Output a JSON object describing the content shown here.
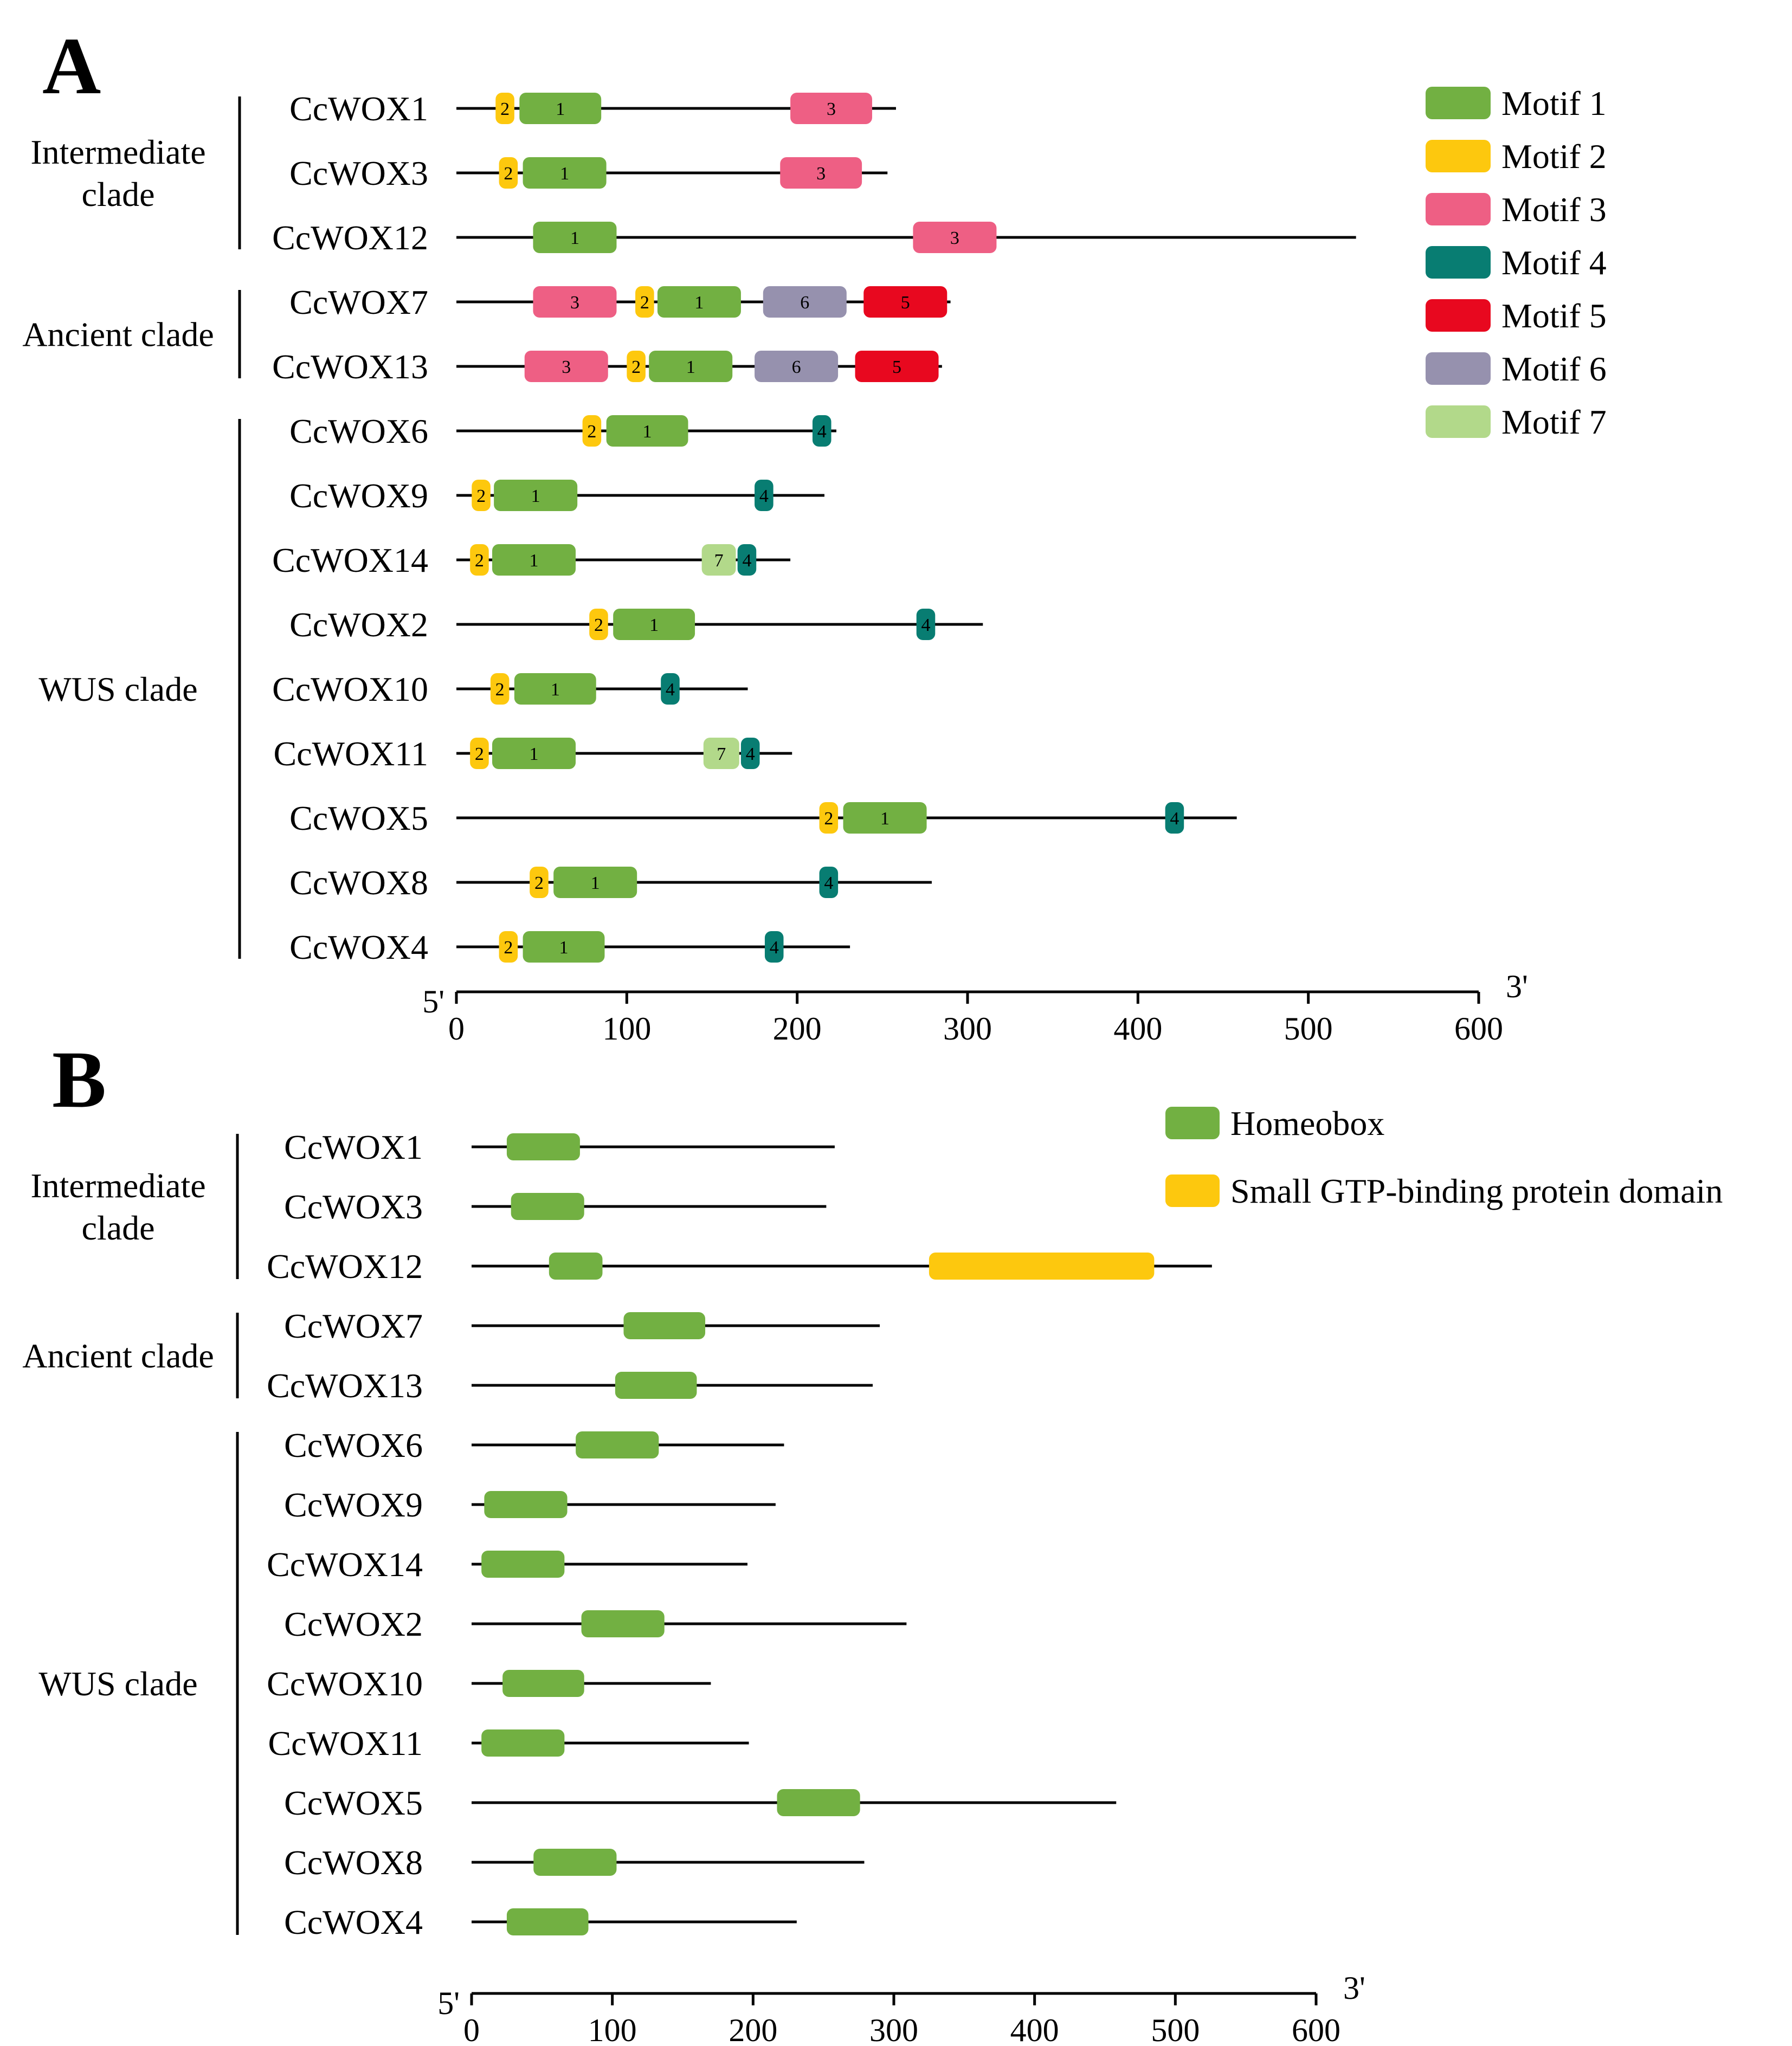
{
  "panel_a": {
    "label": "A",
    "axis": {
      "five_prime": "5'",
      "three_prime": "3'",
      "ticks": [
        0,
        100,
        200,
        300,
        400,
        500,
        600
      ],
      "max": 600
    },
    "clades": [
      {
        "name_lines": [
          "Intermediate",
          "clade"
        ],
        "genes": [
          "CcWOX1",
          "CcWOX3",
          "CcWOX12"
        ]
      },
      {
        "name_lines": [
          "Ancient clade"
        ],
        "genes": [
          "CcWOX7",
          "CcWOX13"
        ]
      },
      {
        "name_lines": [
          "WUS clade"
        ],
        "genes": [
          "CcWOX6",
          "CcWOX9",
          "CcWOX14",
          "CcWOX2",
          "CcWOX10",
          "CcWOX11",
          "CcWOX5",
          "CcWOX8",
          "CcWOX4"
        ]
      }
    ],
    "legend": [
      {
        "motif": "1",
        "label": "Motif 1",
        "color": "#72b042"
      },
      {
        "motif": "2",
        "label": "Motif 2",
        "color": "#fdc80e"
      },
      {
        "motif": "3",
        "label": "Motif 3",
        "color": "#ee5f84"
      },
      {
        "motif": "4",
        "label": "Motif 4",
        "color": "#087d72"
      },
      {
        "motif": "5",
        "label": "Motif 5",
        "color": "#e8081f"
      },
      {
        "motif": "6",
        "label": "Motif 6",
        "color": "#9691ae"
      },
      {
        "motif": "7",
        "label": "Motif 7",
        "color": "#b2d98a"
      }
    ],
    "rows": [
      {
        "gene": "CcWOX1",
        "length": 258,
        "motifs": [
          {
            "m": "2",
            "s": 23,
            "e": 34
          },
          {
            "m": "1",
            "s": 37,
            "e": 85
          },
          {
            "m": "3",
            "s": 196,
            "e": 244
          }
        ]
      },
      {
        "gene": "CcWOX3",
        "length": 253,
        "motifs": [
          {
            "m": "2",
            "s": 25,
            "e": 36
          },
          {
            "m": "1",
            "s": 39,
            "e": 88
          },
          {
            "m": "3",
            "s": 190,
            "e": 238
          }
        ]
      },
      {
        "gene": "CcWOX12",
        "length": 528,
        "motifs": [
          {
            "m": "1",
            "s": 45,
            "e": 94
          },
          {
            "m": "3",
            "s": 268,
            "e": 317
          }
        ]
      },
      {
        "gene": "CcWOX7",
        "length": 290,
        "motifs": [
          {
            "m": "3",
            "s": 45,
            "e": 94
          },
          {
            "m": "2",
            "s": 105,
            "e": 116
          },
          {
            "m": "1",
            "s": 118,
            "e": 167
          },
          {
            "m": "6",
            "s": 180,
            "e": 229
          },
          {
            "m": "5",
            "s": 239,
            "e": 288
          }
        ]
      },
      {
        "gene": "CcWOX13",
        "length": 285,
        "motifs": [
          {
            "m": "3",
            "s": 40,
            "e": 89
          },
          {
            "m": "2",
            "s": 100,
            "e": 111
          },
          {
            "m": "1",
            "s": 113,
            "e": 162
          },
          {
            "m": "6",
            "s": 175,
            "e": 224
          },
          {
            "m": "5",
            "s": 234,
            "e": 283
          }
        ]
      },
      {
        "gene": "CcWOX6",
        "length": 223,
        "motifs": [
          {
            "m": "2",
            "s": 74,
            "e": 85
          },
          {
            "m": "1",
            "s": 88,
            "e": 136
          },
          {
            "m": "4",
            "s": 209,
            "e": 220
          }
        ]
      },
      {
        "gene": "CcWOX9",
        "length": 216,
        "motifs": [
          {
            "m": "2",
            "s": 9,
            "e": 20
          },
          {
            "m": "1",
            "s": 22,
            "e": 71
          },
          {
            "m": "4",
            "s": 175,
            "e": 186
          }
        ]
      },
      {
        "gene": "CcWOX14",
        "length": 196,
        "motifs": [
          {
            "m": "2",
            "s": 8,
            "e": 19
          },
          {
            "m": "1",
            "s": 21,
            "e": 70
          },
          {
            "m": "7",
            "s": 144,
            "e": 164
          },
          {
            "m": "4",
            "s": 165,
            "e": 176
          }
        ]
      },
      {
        "gene": "CcWOX2",
        "length": 309,
        "motifs": [
          {
            "m": "2",
            "s": 78,
            "e": 89
          },
          {
            "m": "1",
            "s": 92,
            "e": 140
          },
          {
            "m": "4",
            "s": 270,
            "e": 281
          }
        ]
      },
      {
        "gene": "CcWOX10",
        "length": 171,
        "motifs": [
          {
            "m": "2",
            "s": 20,
            "e": 31
          },
          {
            "m": "1",
            "s": 34,
            "e": 82
          },
          {
            "m": "4",
            "s": 120,
            "e": 131
          }
        ]
      },
      {
        "gene": "CcWOX11",
        "length": 197,
        "motifs": [
          {
            "m": "2",
            "s": 8,
            "e": 19
          },
          {
            "m": "1",
            "s": 21,
            "e": 70
          },
          {
            "m": "7",
            "s": 145,
            "e": 166
          },
          {
            "m": "4",
            "s": 167,
            "e": 178
          }
        ]
      },
      {
        "gene": "CcWOX5",
        "length": 458,
        "motifs": [
          {
            "m": "2",
            "s": 213,
            "e": 224
          },
          {
            "m": "1",
            "s": 227,
            "e": 276
          },
          {
            "m": "4",
            "s": 416,
            "e": 427
          }
        ]
      },
      {
        "gene": "CcWOX8",
        "length": 279,
        "motifs": [
          {
            "m": "2",
            "s": 43,
            "e": 54
          },
          {
            "m": "1",
            "s": 57,
            "e": 106
          },
          {
            "m": "4",
            "s": 213,
            "e": 224
          }
        ]
      },
      {
        "gene": "CcWOX4",
        "length": 231,
        "motifs": [
          {
            "m": "2",
            "s": 25,
            "e": 36
          },
          {
            "m": "1",
            "s": 39,
            "e": 87
          },
          {
            "m": "4",
            "s": 181,
            "e": 192
          }
        ]
      }
    ]
  },
  "panel_b": {
    "label": "B",
    "axis": {
      "five_prime": "5'",
      "three_prime": "3'",
      "ticks": [
        0,
        100,
        200,
        300,
        400,
        500,
        600
      ],
      "max": 600
    },
    "clades": [
      {
        "name_lines": [
          "Intermediate",
          "clade"
        ],
        "genes": [
          "CcWOX1",
          "CcWOX3",
          "CcWOX12"
        ]
      },
      {
        "name_lines": [
          "Ancient clade"
        ],
        "genes": [
          "CcWOX7",
          "CcWOX13"
        ]
      },
      {
        "name_lines": [
          "WUS clade"
        ],
        "genes": [
          "CcWOX6",
          "CcWOX9",
          "CcWOX14",
          "CcWOX2",
          "CcWOX10",
          "CcWOX11",
          "CcWOX5",
          "CcWOX8",
          "CcWOX4"
        ]
      }
    ],
    "legend": [
      {
        "domain": "homeobox",
        "label": "Homeobox",
        "color": "#72b042"
      },
      {
        "domain": "gtp",
        "label": "Small GTP-binding protein domain",
        "color": "#fdc80e"
      }
    ],
    "rows": [
      {
        "gene": "CcWOX1",
        "length": 258,
        "domains": [
          {
            "d": "homeobox",
            "s": 25,
            "e": 77
          }
        ]
      },
      {
        "gene": "CcWOX3",
        "length": 252,
        "domains": [
          {
            "d": "homeobox",
            "s": 28,
            "e": 80
          }
        ]
      },
      {
        "gene": "CcWOX12",
        "length": 526,
        "domains": [
          {
            "d": "homeobox",
            "s": 55,
            "e": 93
          },
          {
            "d": "gtp",
            "s": 325,
            "e": 485
          }
        ]
      },
      {
        "gene": "CcWOX7",
        "length": 290,
        "domains": [
          {
            "d": "homeobox",
            "s": 108,
            "e": 166
          }
        ]
      },
      {
        "gene": "CcWOX13",
        "length": 285,
        "domains": [
          {
            "d": "homeobox",
            "s": 102,
            "e": 160
          }
        ]
      },
      {
        "gene": "CcWOX6",
        "length": 222,
        "domains": [
          {
            "d": "homeobox",
            "s": 74,
            "e": 133
          }
        ]
      },
      {
        "gene": "CcWOX9",
        "length": 216,
        "domains": [
          {
            "d": "homeobox",
            "s": 9,
            "e": 68
          }
        ]
      },
      {
        "gene": "CcWOX14",
        "length": 196,
        "domains": [
          {
            "d": "homeobox",
            "s": 7,
            "e": 66
          }
        ]
      },
      {
        "gene": "CcWOX2",
        "length": 309,
        "domains": [
          {
            "d": "homeobox",
            "s": 78,
            "e": 137
          }
        ]
      },
      {
        "gene": "CcWOX10",
        "length": 170,
        "domains": [
          {
            "d": "homeobox",
            "s": 22,
            "e": 80
          }
        ]
      },
      {
        "gene": "CcWOX11",
        "length": 197,
        "domains": [
          {
            "d": "homeobox",
            "s": 7,
            "e": 66
          }
        ]
      },
      {
        "gene": "CcWOX5",
        "length": 458,
        "domains": [
          {
            "d": "homeobox",
            "s": 217,
            "e": 276
          }
        ]
      },
      {
        "gene": "CcWOX8",
        "length": 279,
        "domains": [
          {
            "d": "homeobox",
            "s": 44,
            "e": 103
          }
        ]
      },
      {
        "gene": "CcWOX4",
        "length": 231,
        "domains": [
          {
            "d": "homeobox",
            "s": 25,
            "e": 83
          }
        ]
      }
    ]
  }
}
